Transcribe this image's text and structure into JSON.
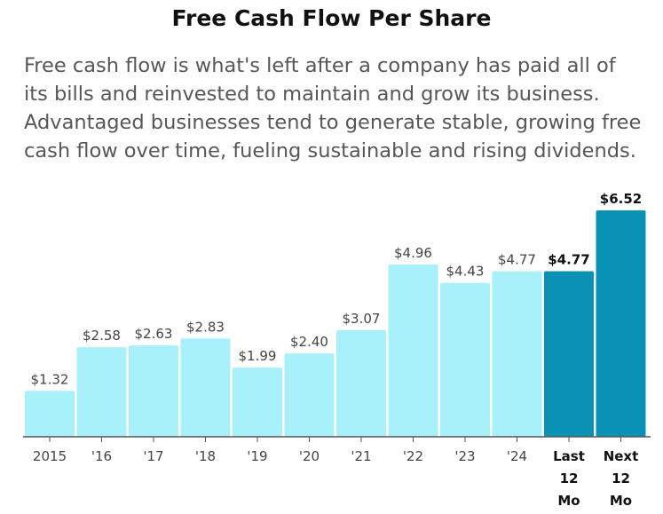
{
  "header": {
    "title": "Free Cash Flow Per Share",
    "description": "Free cash flow is what's left after a company has paid all of its bills and reinvested to maintain and grow its business. Advantaged businesses tend to generate stable, growing free cash flow over time, fueling sustainable and rising dividends."
  },
  "colors": {
    "historical": "#a8f1fb",
    "current": "#0a92b5",
    "axis": "#555555"
  },
  "chart_data": {
    "type": "bar",
    "title": "Free Cash Flow Per Share",
    "xlabel": "",
    "ylabel": "",
    "categories": [
      "2015",
      "'16",
      "'17",
      "'18",
      "'19",
      "'20",
      "'21",
      "'22",
      "'23",
      "'24",
      "Last 12 Mo",
      "Next 12 Mo"
    ],
    "values": [
      1.32,
      2.58,
      2.63,
      2.83,
      1.99,
      2.4,
      3.07,
      4.96,
      4.43,
      4.77,
      4.77,
      6.52
    ],
    "labels": [
      "$1.32",
      "$2.58",
      "$2.63",
      "$2.83",
      "$1.99",
      "$2.40",
      "$3.07",
      "$4.96",
      "$4.43",
      "$4.77",
      "$4.77",
      "$6.52"
    ],
    "highlight": [
      false,
      false,
      false,
      false,
      false,
      false,
      false,
      false,
      false,
      false,
      true,
      true
    ],
    "ylim": [
      0,
      6.52
    ],
    "grid": false,
    "legend": "none"
  }
}
